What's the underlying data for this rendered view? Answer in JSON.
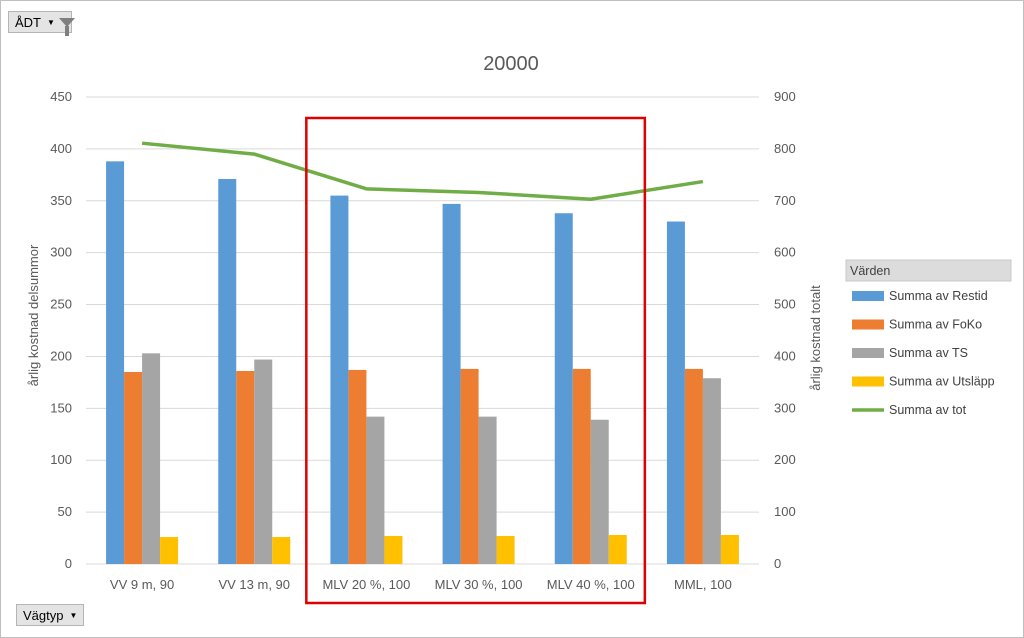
{
  "pivot": {
    "filter_field": "ÅDT",
    "row_field": "Vägtyp",
    "legend_header": "Värden"
  },
  "colors": {
    "restid": "#5b9bd5",
    "foko": "#ed7d31",
    "ts": "#a5a5a5",
    "utslapp": "#ffc000",
    "tot": "#70ad47",
    "highlight": "#e00000"
  },
  "icons": {
    "filter": "funnel-icon",
    "dropdown": "dropdown-arrow-icon"
  },
  "chart_data": {
    "type": "bar",
    "title": "20000",
    "ylabel": "årlig kostnad delsummor",
    "y2label": "årlig kostnad totalt",
    "ylim": [
      0,
      450
    ],
    "y2lim": [
      0,
      900
    ],
    "yticks": [
      0,
      50,
      100,
      150,
      200,
      250,
      300,
      350,
      400,
      450
    ],
    "y2ticks": [
      0,
      100,
      200,
      300,
      400,
      500,
      600,
      700,
      800,
      900
    ],
    "grid": true,
    "legend_position": "right",
    "categories": [
      "VV 9 m, 90",
      "VV 13 m, 90",
      "MLV 20 %, 100",
      "MLV 30 %, 100",
      "MLV 40 %, 100",
      "MML, 100"
    ],
    "series": [
      {
        "name": "Summa av Restid",
        "type": "bar",
        "axis": "left",
        "color": "#5b9bd5",
        "values": [
          388,
          371,
          355,
          347,
          338,
          330
        ]
      },
      {
        "name": "Summa av FoKo",
        "type": "bar",
        "axis": "left",
        "color": "#ed7d31",
        "values": [
          185,
          186,
          187,
          188,
          188,
          188
        ]
      },
      {
        "name": "Summa av TS",
        "type": "bar",
        "axis": "left",
        "color": "#a5a5a5",
        "values": [
          203,
          197,
          142,
          142,
          139,
          179
        ]
      },
      {
        "name": "Summa av Utsläpp",
        "type": "bar",
        "axis": "left",
        "color": "#ffc000",
        "values": [
          26,
          26,
          27,
          27,
          28,
          28
        ]
      },
      {
        "name": "Summa av tot",
        "type": "line",
        "axis": "right",
        "color": "#70ad47",
        "values": [
          811,
          790,
          723,
          716,
          703,
          737
        ]
      }
    ],
    "highlight": {
      "from_category": 2,
      "to_category": 4,
      "color": "#e00000"
    }
  }
}
